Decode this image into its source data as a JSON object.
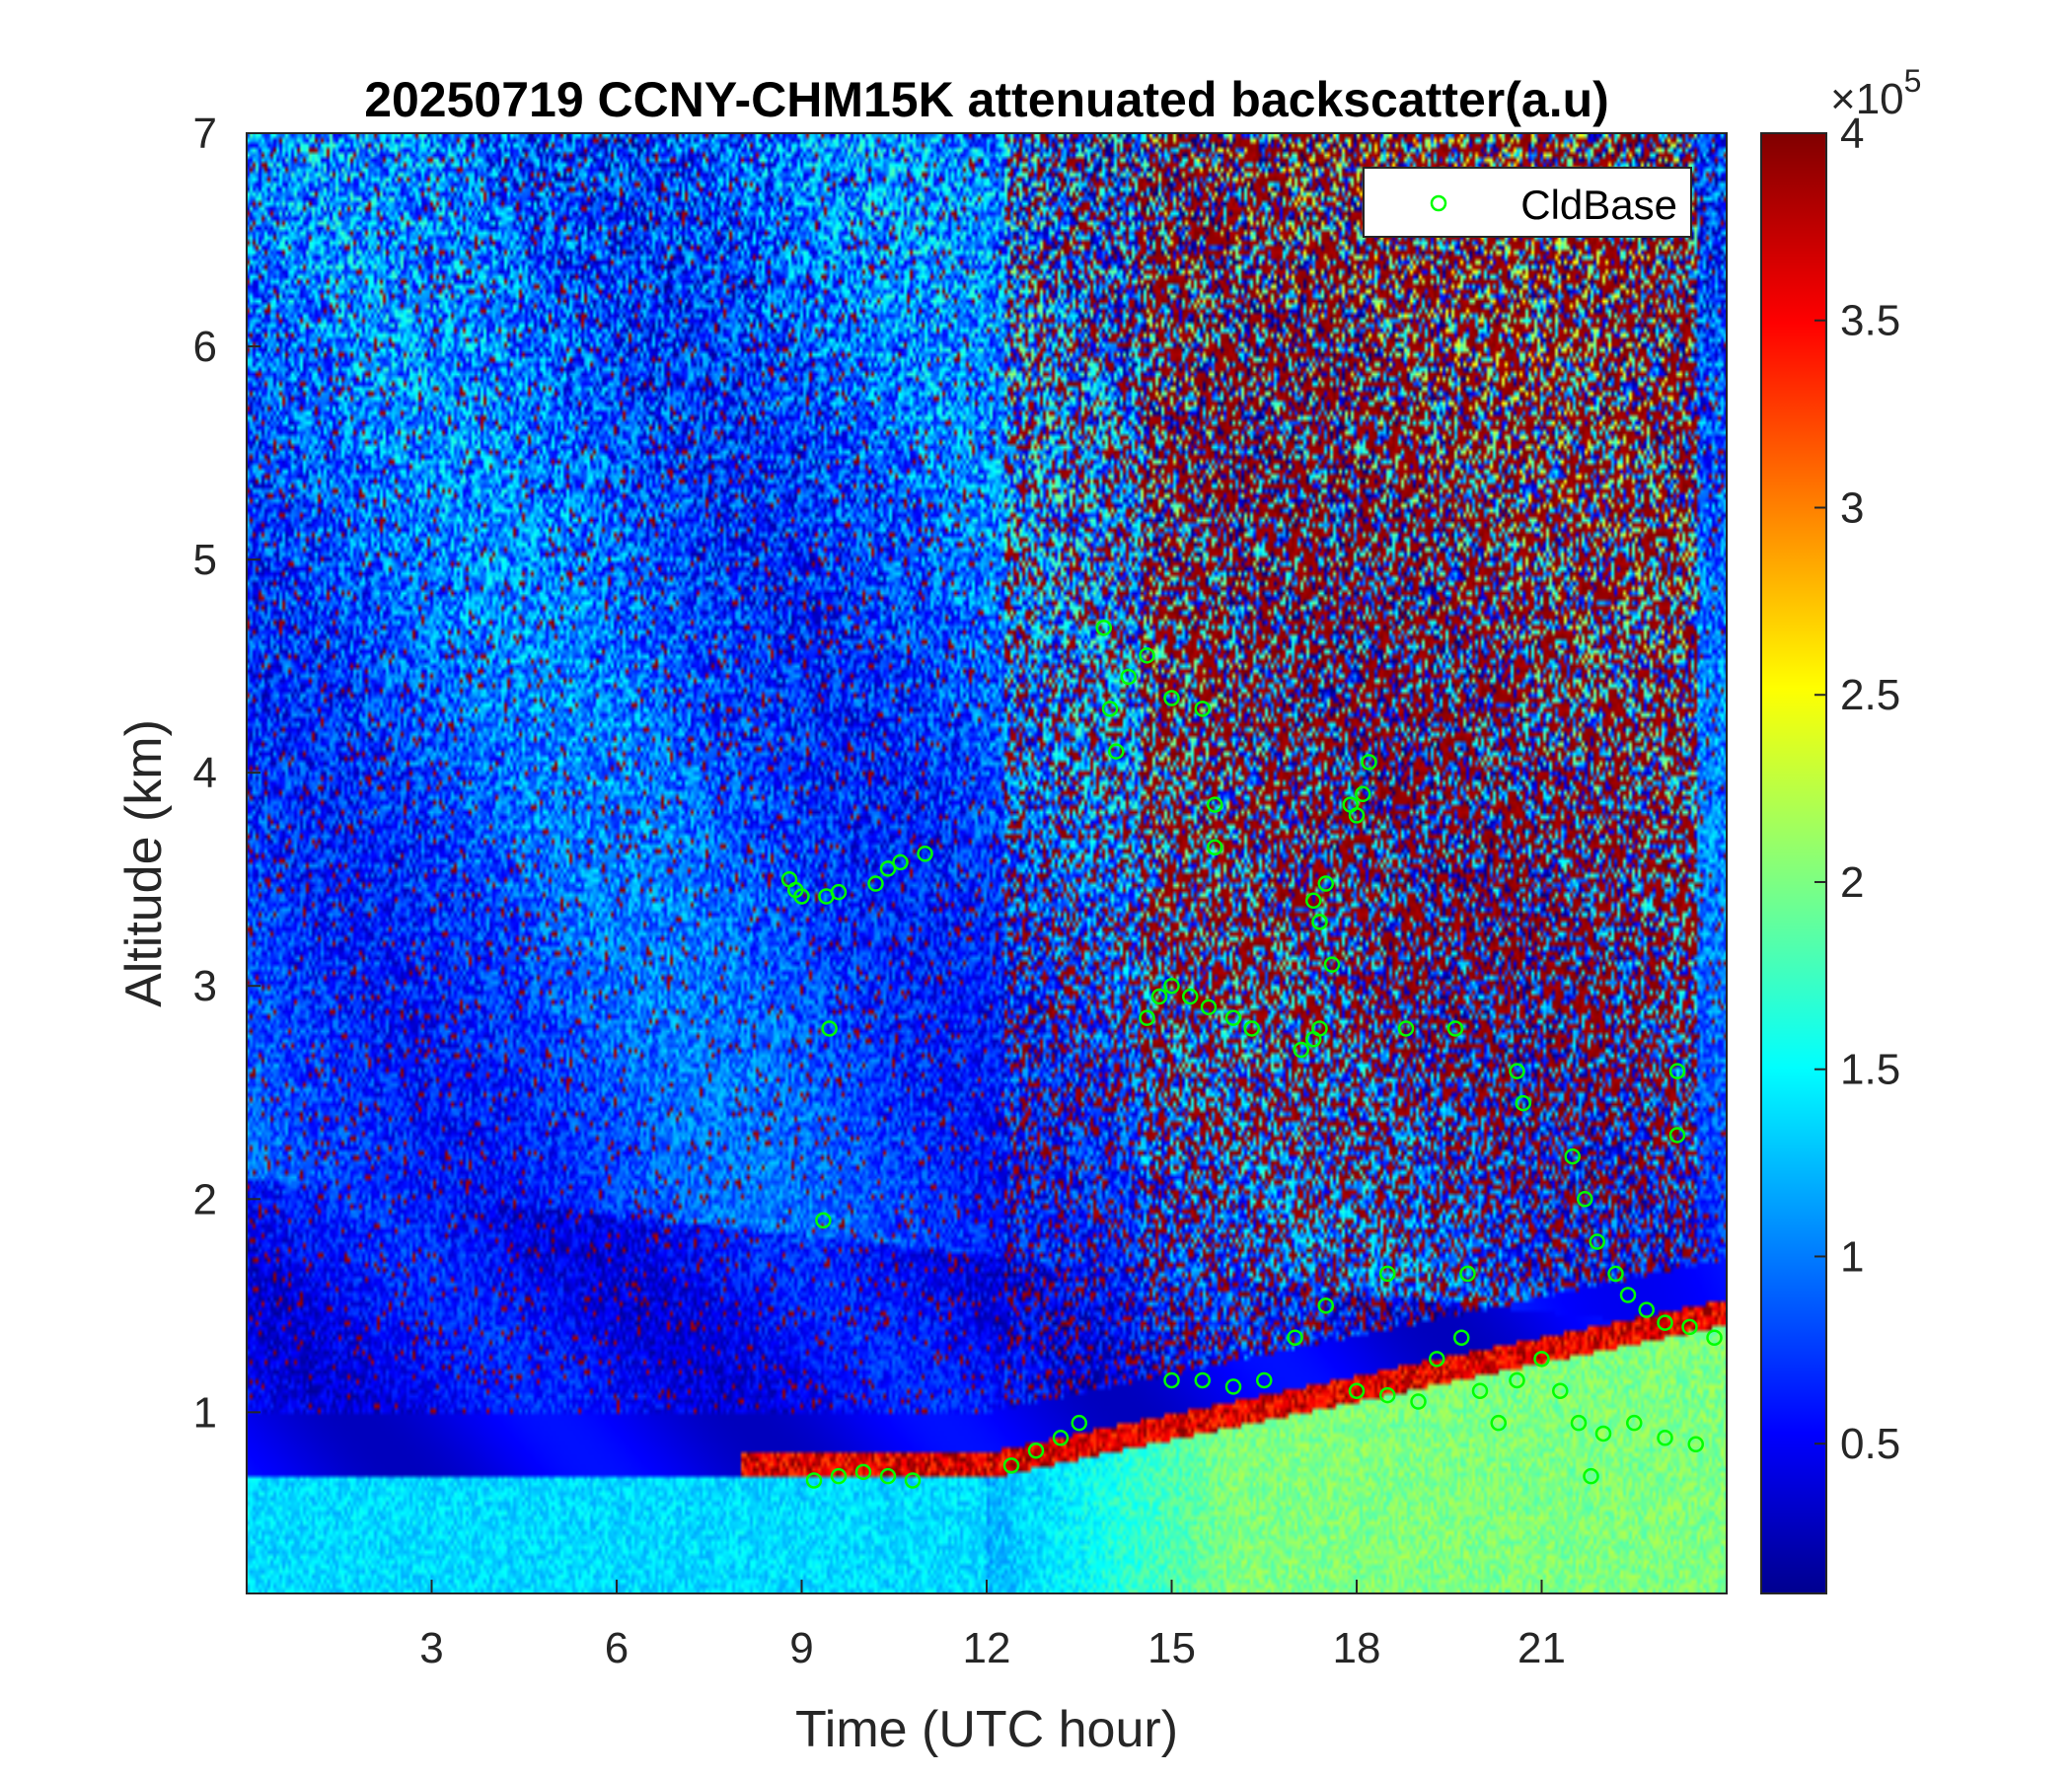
{
  "chart_data": {
    "type": "heatmap",
    "title": "20250719 CCNY-CHM15K attenuated backscatter(a.u)",
    "xlabel": "Time (UTC hour)",
    "ylabel": "Altitude (km)",
    "xlim": [
      0,
      24
    ],
    "ylim": [
      0.15,
      7
    ],
    "x_ticks": [
      3,
      6,
      9,
      12,
      15,
      18,
      21
    ],
    "x_tick_labels": [
      "3",
      "6",
      "9",
      "12",
      "15",
      "18",
      "21"
    ],
    "y_ticks": [
      1,
      2,
      3,
      4,
      5,
      6,
      7
    ],
    "y_tick_labels": [
      "1",
      "2",
      "3",
      "4",
      "5",
      "6",
      "7"
    ],
    "colorbar": {
      "colormap": "jet",
      "clim": [
        0.1,
        4
      ],
      "ticks": [
        0.5,
        1,
        1.5,
        2,
        2.5,
        3,
        3.5,
        4
      ],
      "tick_labels": [
        "0.5",
        "1",
        "1.5",
        "2",
        "2.5",
        "3",
        "3.5",
        "4"
      ],
      "exponent_label": "×10",
      "exponent_power": "5"
    },
    "grid": false,
    "legend": {
      "position": "top-right",
      "entries": [
        {
          "name": "CldBase",
          "marker": "open-circle",
          "color": "#00ff00"
        }
      ]
    },
    "series": [
      {
        "name": "CldBase",
        "type": "scatter",
        "color": "#00ff00",
        "points": [
          [
            8.8,
            3.5
          ],
          [
            8.9,
            3.45
          ],
          [
            9.0,
            3.42
          ],
          [
            9.4,
            3.42
          ],
          [
            9.6,
            3.44
          ],
          [
            10.2,
            3.48
          ],
          [
            10.4,
            3.55
          ],
          [
            10.6,
            3.58
          ],
          [
            11.0,
            3.62
          ],
          [
            9.45,
            2.8
          ],
          [
            9.35,
            1.9
          ],
          [
            9.2,
            0.68
          ],
          [
            9.6,
            0.7
          ],
          [
            10.0,
            0.72
          ],
          [
            10.4,
            0.7
          ],
          [
            10.8,
            0.68
          ],
          [
            12.4,
            0.75
          ],
          [
            12.8,
            0.82
          ],
          [
            13.2,
            0.88
          ],
          [
            13.5,
            0.95
          ],
          [
            13.9,
            4.68
          ],
          [
            14.0,
            4.3
          ],
          [
            14.1,
            4.1
          ],
          [
            14.3,
            4.45
          ],
          [
            14.6,
            4.55
          ],
          [
            15.0,
            4.35
          ],
          [
            15.5,
            4.3
          ],
          [
            15.7,
            3.85
          ],
          [
            15.7,
            3.65
          ],
          [
            14.6,
            2.85
          ],
          [
            14.8,
            2.95
          ],
          [
            15.0,
            3.0
          ],
          [
            15.3,
            2.95
          ],
          [
            15.6,
            2.9
          ],
          [
            16.0,
            2.85
          ],
          [
            16.3,
            2.8
          ],
          [
            17.1,
            2.7
          ],
          [
            17.3,
            2.75
          ],
          [
            17.4,
            2.8
          ],
          [
            17.3,
            3.4
          ],
          [
            17.5,
            3.48
          ],
          [
            17.4,
            3.3
          ],
          [
            17.6,
            3.1
          ],
          [
            17.9,
            3.85
          ],
          [
            18.0,
            3.8
          ],
          [
            18.1,
            3.9
          ],
          [
            18.2,
            4.05
          ],
          [
            18.8,
            2.8
          ],
          [
            19.6,
            2.8
          ],
          [
            20.6,
            2.6
          ],
          [
            20.7,
            2.45
          ],
          [
            21.5,
            2.2
          ],
          [
            21.7,
            2.0
          ],
          [
            21.9,
            1.8
          ],
          [
            22.2,
            1.65
          ],
          [
            22.4,
            1.55
          ],
          [
            22.7,
            1.48
          ],
          [
            23.0,
            1.42
          ],
          [
            23.4,
            1.4
          ],
          [
            23.8,
            1.35
          ],
          [
            23.2,
            2.6
          ],
          [
            23.2,
            2.3
          ],
          [
            15.0,
            1.15
          ],
          [
            15.5,
            1.15
          ],
          [
            16.0,
            1.12
          ],
          [
            16.5,
            1.15
          ],
          [
            17.0,
            1.35
          ],
          [
            17.5,
            1.5
          ],
          [
            18.0,
            1.1
          ],
          [
            18.5,
            1.08
          ],
          [
            19.0,
            1.05
          ],
          [
            19.3,
            1.25
          ],
          [
            19.7,
            1.35
          ],
          [
            20.0,
            1.1
          ],
          [
            20.3,
            0.95
          ],
          [
            20.6,
            1.15
          ],
          [
            21.0,
            1.25
          ],
          [
            21.3,
            1.1
          ],
          [
            21.6,
            0.95
          ],
          [
            22.0,
            0.9
          ],
          [
            22.5,
            0.95
          ],
          [
            23.0,
            0.88
          ],
          [
            23.5,
            0.85
          ],
          [
            19.8,
            1.65
          ],
          [
            18.5,
            1.65
          ],
          [
            21.8,
            0.7
          ]
        ]
      }
    ]
  }
}
